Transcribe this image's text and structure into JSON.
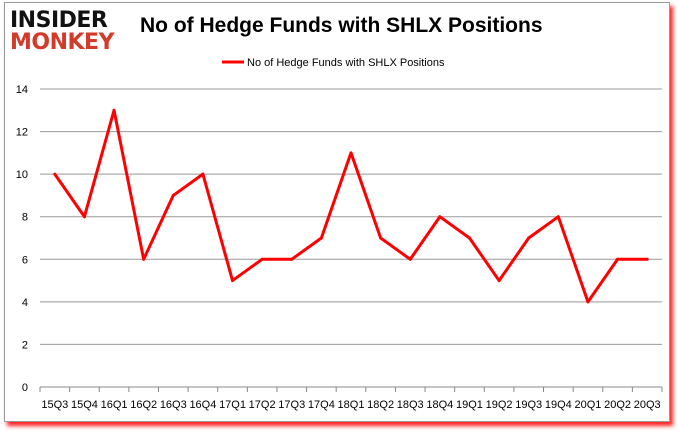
{
  "logo": {
    "line1": "INSIDER",
    "line2": "MONKEY"
  },
  "chart_data": {
    "type": "line",
    "title": "No of Hedge Funds with SHLX Positions",
    "xlabel": "",
    "ylabel": "",
    "categories": [
      "15Q3",
      "15Q4",
      "16Q1",
      "16Q2",
      "16Q3",
      "16Q4",
      "17Q1",
      "17Q2",
      "17Q3",
      "17Q4",
      "18Q1",
      "18Q2",
      "18Q3",
      "18Q4",
      "19Q1",
      "19Q2",
      "19Q3",
      "19Q4",
      "20Q1",
      "20Q2",
      "20Q3"
    ],
    "series": [
      {
        "name": "No of Hedge Funds with SHLX Positions",
        "values": [
          10,
          8,
          13,
          6,
          9,
          10,
          5,
          6,
          6,
          7,
          11,
          7,
          6,
          8,
          7,
          5,
          7,
          8,
          4,
          6,
          6
        ],
        "color": "#ff0000"
      }
    ],
    "ylim": [
      0,
      14
    ],
    "yticks": [
      0,
      2,
      4,
      6,
      8,
      10,
      12,
      14
    ],
    "grid": true,
    "legend": "top-center"
  }
}
